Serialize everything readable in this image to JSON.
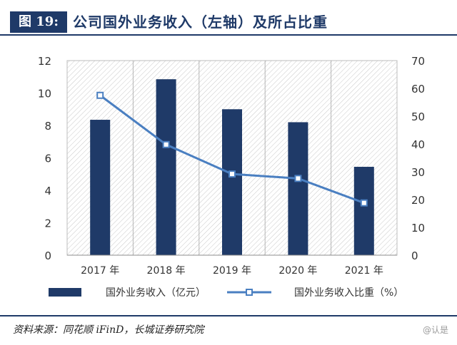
{
  "header": {
    "figure_label": "图 19:",
    "title": "公司国外业务收入（左轴）及所占比重"
  },
  "chart_data": {
    "type": "bar",
    "categories": [
      "2017 年",
      "2018 年",
      "2019 年",
      "2020 年",
      "2021 年"
    ],
    "series": [
      {
        "name": "国外业务收入（亿元）",
        "type": "bar",
        "axis": "left",
        "values": [
          8.35,
          10.85,
          9.0,
          8.2,
          5.45
        ]
      },
      {
        "name": "国外业务收入比重（%）",
        "type": "line",
        "axis": "right",
        "values": [
          57.5,
          39.8,
          29.2,
          27.6,
          18.8
        ]
      }
    ],
    "y_left": {
      "min": 0,
      "max": 12,
      "ticks": [
        0,
        2,
        4,
        6,
        8,
        10,
        12
      ]
    },
    "y_right": {
      "min": 0,
      "max": 70,
      "ticks": [
        0,
        10,
        20,
        30,
        40,
        50,
        60,
        70
      ]
    },
    "legend_position": "bottom",
    "colors": {
      "bar": "#1f3a68",
      "line": "#4a7fc1",
      "grid": "#b5b5b5"
    }
  },
  "footer": {
    "source": "资料来源：同花顺 iFinD，长城证券研究院",
    "watermark": "@认是"
  }
}
